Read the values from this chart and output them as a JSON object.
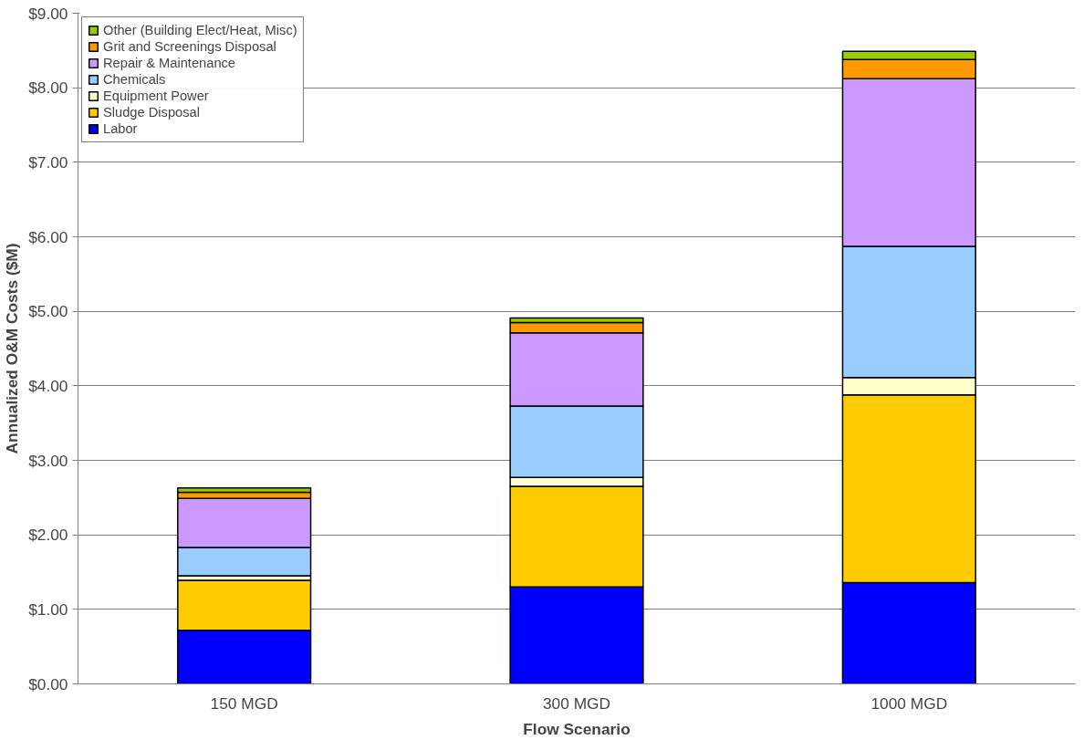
{
  "chart_data": {
    "type": "bar",
    "stacked": true,
    "xlabel": "Flow Scenario",
    "ylabel": "Annualized O&M Costs ($M)",
    "categories": [
      "150 MGD",
      "300 MGD",
      "1000 MGD"
    ],
    "series": [
      {
        "name": "Labor",
        "color": "#0000ff",
        "values": [
          0.72,
          1.3,
          1.36
        ]
      },
      {
        "name": "Sludge Disposal",
        "color": "#ffcc00",
        "values": [
          0.67,
          1.35,
          2.52
        ]
      },
      {
        "name": "Equipment Power",
        "color": "#ffffcc",
        "values": [
          0.06,
          0.12,
          0.23
        ]
      },
      {
        "name": "Chemicals",
        "color": "#99ccff",
        "values": [
          0.38,
          0.96,
          1.76
        ]
      },
      {
        "name": "Repair & Maintenance",
        "color": "#cc99ff",
        "values": [
          0.66,
          0.98,
          2.25
        ]
      },
      {
        "name": "Grit and Screenings Disposal",
        "color": "#ff9900",
        "values": [
          0.08,
          0.14,
          0.26
        ]
      },
      {
        "name": "Other (Building Elect/Heat, Misc)",
        "color": "#99cc00",
        "values": [
          0.06,
          0.06,
          0.11
        ]
      }
    ],
    "ylim": [
      0,
      9
    ],
    "yticks": [
      {
        "value": 0,
        "label": "$0.00"
      },
      {
        "value": 1,
        "label": "$1.00"
      },
      {
        "value": 2,
        "label": "$2.00"
      },
      {
        "value": 3,
        "label": "$3.00"
      },
      {
        "value": 4,
        "label": "$4.00"
      },
      {
        "value": 5,
        "label": "$5.00"
      },
      {
        "value": 6,
        "label": "$6.00"
      },
      {
        "value": 7,
        "label": "$7.00"
      },
      {
        "value": 8,
        "label": "$8.00"
      },
      {
        "value": 9,
        "label": "$9.00"
      }
    ],
    "grid": "y",
    "legend": "top left"
  }
}
